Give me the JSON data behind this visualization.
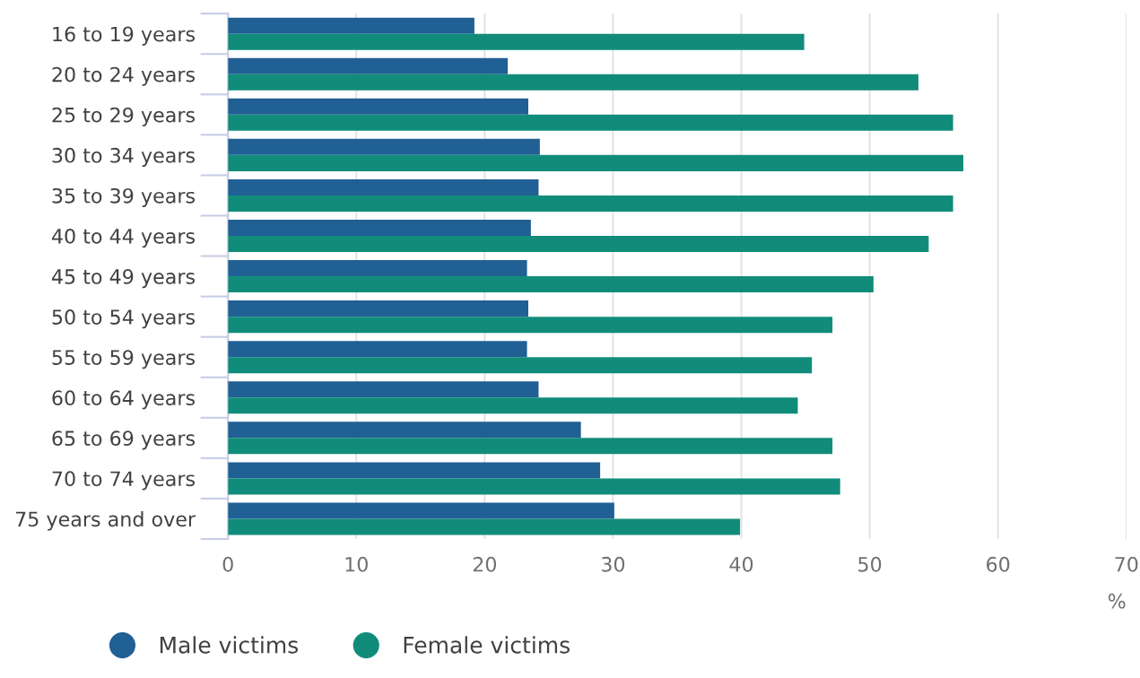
{
  "chart_data": {
    "type": "bar",
    "orientation": "horizontal",
    "xlabel": "%",
    "categories": [
      "16 to 19 years",
      "20 to 24 years",
      "25 to 29 years",
      "30 to 34 years",
      "35 to 39 years",
      "40 to 44 years",
      "45 to 49 years",
      "50 to 54 years",
      "55 to 59 years",
      "60 to 64 years",
      "65 to 69 years",
      "70 to 74 years",
      "75 years and over"
    ],
    "series": [
      {
        "name": "Male victims",
        "color": "#206095",
        "values": [
          19.2,
          21.8,
          23.4,
          24.3,
          24.2,
          23.6,
          23.3,
          23.4,
          23.3,
          24.2,
          27.5,
          29.0,
          30.1
        ]
      },
      {
        "name": "Female victims",
        "color": "#118c7b",
        "values": [
          44.9,
          53.8,
          56.5,
          57.3,
          56.5,
          54.6,
          50.3,
          47.1,
          45.5,
          44.4,
          47.1,
          47.7,
          39.9
        ]
      }
    ],
    "xlim": [
      0,
      70
    ],
    "xticks": [
      0,
      10,
      20,
      30,
      40,
      50,
      60,
      70
    ],
    "grid": "x",
    "legend": "bottom left"
  }
}
